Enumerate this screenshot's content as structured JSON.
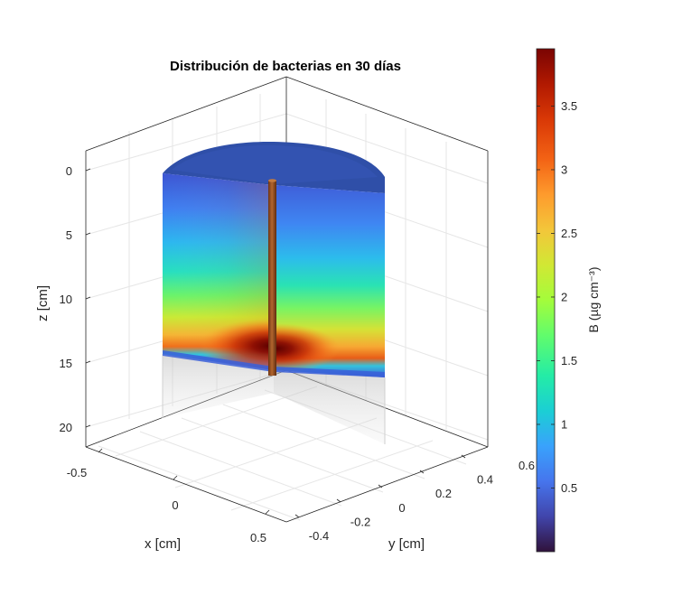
{
  "chart_data": {
    "type": "heatmap",
    "subtype": "3d-cylinder-section",
    "title": "Distribución de bacterias en 30 días",
    "xlabel": "x [cm]",
    "ylabel": "y [cm]",
    "zlabel": "z [cm]",
    "colorbar_label": "B (µg cm⁻³)",
    "colormap": "turbo",
    "x_ticks": [
      "-0.5",
      "0",
      "0.5"
    ],
    "y_ticks": [
      "-0.4",
      "-0.2",
      "0",
      "0.2",
      "0.4",
      "0.6"
    ],
    "z_ticks": [
      "0",
      "5",
      "10",
      "15",
      "20"
    ],
    "colorbar_ticks": [
      "0.5",
      "1",
      "1.5",
      "2",
      "2.5",
      "3",
      "3.5"
    ],
    "colorbar_range": [
      0,
      3.95
    ],
    "z_reversed": true,
    "grid": true,
    "peak": {
      "B": 3.9,
      "z": 13.5,
      "r": 0
    }
  }
}
